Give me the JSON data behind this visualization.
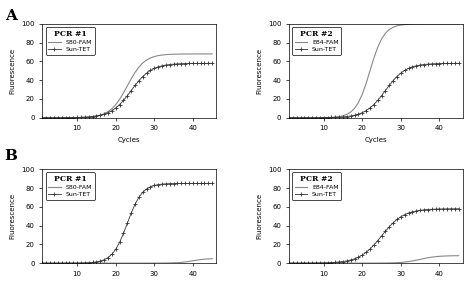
{
  "panel_A_label": "A",
  "panel_B_label": "B",
  "x_cycles": [
    1,
    2,
    3,
    4,
    5,
    6,
    7,
    8,
    9,
    10,
    11,
    12,
    13,
    14,
    15,
    16,
    17,
    18,
    19,
    20,
    21,
    22,
    23,
    24,
    25,
    26,
    27,
    28,
    29,
    30,
    31,
    32,
    33,
    34,
    35,
    36,
    37,
    38,
    39,
    40,
    41,
    42,
    43,
    44,
    45
  ],
  "xlabel": "Cycles",
  "ylabel": "Fluorescence",
  "ylim": [
    0,
    100
  ],
  "xlim": [
    1,
    46
  ],
  "xticks": [
    10,
    20,
    30,
    40
  ],
  "yticks": [
    0,
    20,
    40,
    60,
    80,
    100
  ],
  "background_color": "#ffffff",
  "line_color_fam": "#888888",
  "line_color_tet": "#333333",
  "panels": [
    {
      "row": 0,
      "col": 0,
      "title": "PCR #1",
      "legend_fam": "S80-FAM",
      "legend_tet": "Sun-TET",
      "fam_sigmoid_mid": 23,
      "fam_sigmoid_rate": 0.45,
      "fam_max": 68,
      "tet_sigmoid_mid": 24,
      "tet_sigmoid_rate": 0.38,
      "tet_max": 58
    },
    {
      "row": 0,
      "col": 1,
      "title": "PCR #2",
      "legend_fam": "E84-FAM",
      "legend_tet": "Sun-TET",
      "fam_sigmoid_mid": 22,
      "fam_sigmoid_rate": 0.55,
      "fam_max": 100,
      "tet_sigmoid_mid": 26,
      "tet_sigmoid_rate": 0.38,
      "tet_max": 58
    },
    {
      "row": 1,
      "col": 0,
      "title": "PCR #1",
      "legend_fam": "S80-FAM",
      "legend_tet": "Sun-TET",
      "fam_sigmoid_mid": 40,
      "fam_sigmoid_rate": 0.55,
      "fam_max": 5,
      "tet_sigmoid_mid": 23,
      "tet_sigmoid_rate": 0.52,
      "tet_max": 85
    },
    {
      "row": 1,
      "col": 1,
      "title": "PCR #2",
      "legend_fam": "E84-FAM",
      "legend_tet": "Sun-TET",
      "fam_sigmoid_mid": 35,
      "fam_sigmoid_rate": 0.45,
      "fam_max": 8,
      "tet_sigmoid_mid": 25,
      "tet_sigmoid_rate": 0.35,
      "tet_max": 58
    }
  ]
}
